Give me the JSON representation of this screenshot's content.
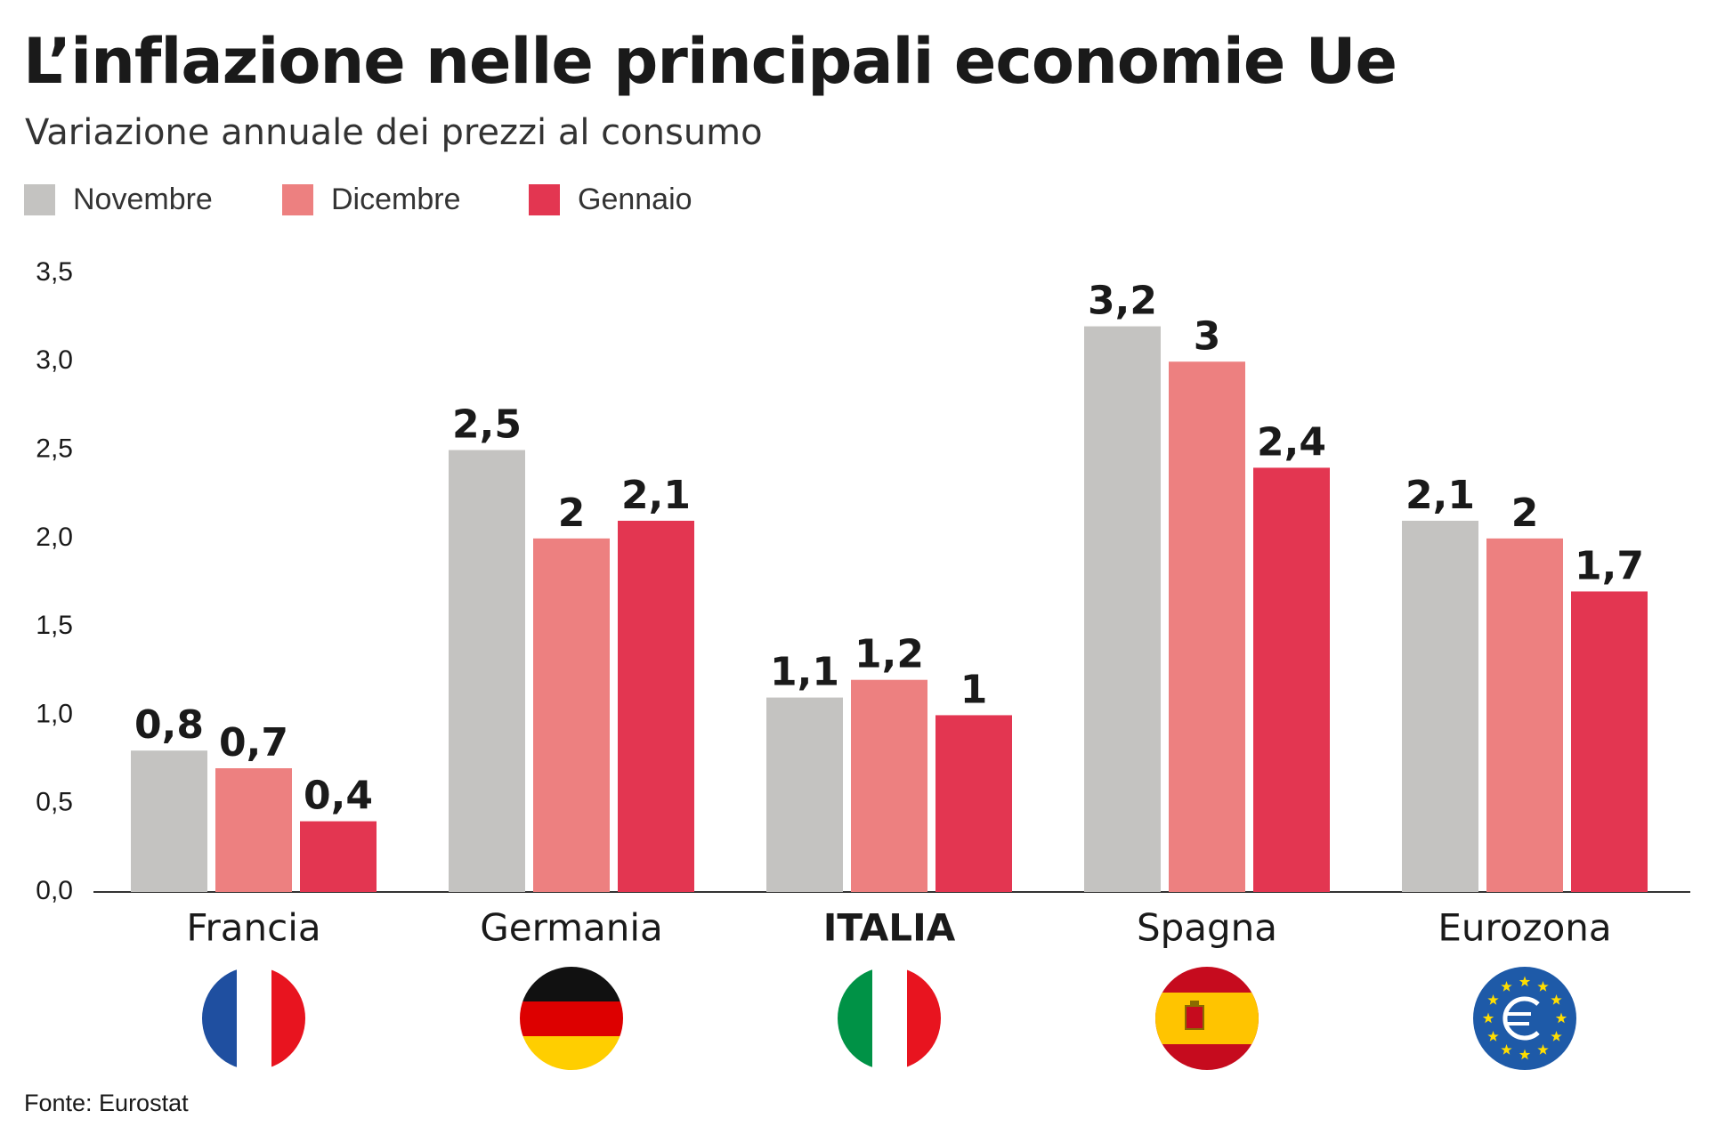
{
  "chart_data": {
    "type": "bar",
    "title": "L’inflazione nelle principali economie Ue",
    "subtitle": "Variazione annuale dei prezzi al consumo",
    "source": "Fonte: Eurostat",
    "categories": [
      "Francia",
      "Germania",
      "ITALIA",
      "Spagna",
      "Eurozona"
    ],
    "series": [
      {
        "name": "Novembre",
        "color": "#c4c3c1",
        "values": [
          0.8,
          2.5,
          1.1,
          3.2,
          2.1
        ],
        "value_labels": [
          "0,8",
          "2,5",
          "1,1",
          "3,2",
          "2,1"
        ]
      },
      {
        "name": "Dicembre",
        "color": "#ed8080",
        "values": [
          0.7,
          2,
          1.2,
          3,
          2
        ],
        "value_labels": [
          "0,7",
          "2",
          "1,2",
          "3",
          "2"
        ]
      },
      {
        "name": "Gennaio",
        "color": "#e33651",
        "values": [
          0.4,
          2.1,
          1,
          2.4,
          1.7
        ],
        "value_labels": [
          "0,4",
          "2,1",
          "1",
          "2,4",
          "1,7"
        ]
      }
    ],
    "ylim": [
      0,
      3.5
    ],
    "yticks": [
      {
        "value": 0,
        "label": "0,0"
      },
      {
        "value": 0.5,
        "label": "0,5"
      },
      {
        "value": 1,
        "label": "1,0"
      },
      {
        "value": 1.5,
        "label": "1,5"
      },
      {
        "value": 2,
        "label": "2,0"
      },
      {
        "value": 2.5,
        "label": "2,5"
      },
      {
        "value": 3,
        "label": "3,0"
      },
      {
        "value": 3.5,
        "label": "3,5"
      }
    ]
  }
}
